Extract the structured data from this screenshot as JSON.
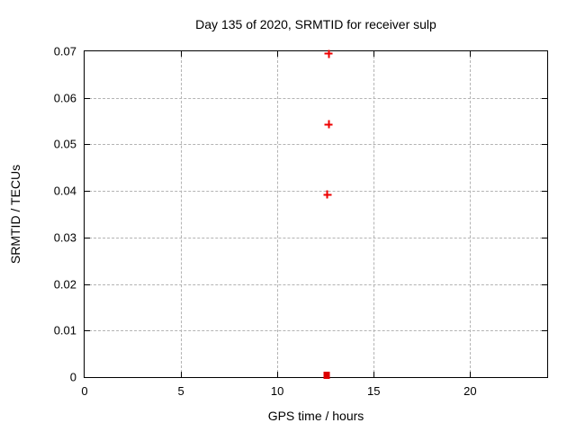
{
  "colors": {
    "background": "#ffffff",
    "border": "#000000",
    "grid": "#b3b3b3",
    "text": "#000000",
    "marker_red": "#ee0000"
  },
  "chart_data": {
    "type": "scatter",
    "title": "Day 135 of 2020, SRMTID for receiver sulp",
    "xlabel": "GPS time / hours",
    "ylabel": "SRMTID / TECUs",
    "xlim": [
      0,
      24
    ],
    "ylim": [
      0,
      0.07
    ],
    "grid": true,
    "legend": "none",
    "xticks": [
      {
        "v": 0,
        "label": "0"
      },
      {
        "v": 5,
        "label": "5"
      },
      {
        "v": 10,
        "label": "10"
      },
      {
        "v": 15,
        "label": "15"
      },
      {
        "v": 20,
        "label": "20"
      }
    ],
    "yticks": [
      {
        "v": 0,
        "label": "0"
      },
      {
        "v": 0.01,
        "label": "0.01"
      },
      {
        "v": 0.02,
        "label": "0.02"
      },
      {
        "v": 0.03,
        "label": "0.03"
      },
      {
        "v": 0.04,
        "label": "0.04"
      },
      {
        "v": 0.05,
        "label": "0.05"
      },
      {
        "v": 0.06,
        "label": "0.06"
      },
      {
        "v": 0.07,
        "label": "0.07"
      }
    ],
    "series": [
      {
        "marker": "plus",
        "color": "#ee0000",
        "points": [
          {
            "x": 12.66,
            "y": 0.0695
          },
          {
            "x": 12.66,
            "y": 0.0543
          },
          {
            "x": 12.6,
            "y": 0.0392
          }
        ]
      },
      {
        "marker": "filled-square",
        "color": "#dd0000",
        "points": [
          {
            "x": 12.55,
            "y": 0.0004
          }
        ]
      }
    ]
  }
}
